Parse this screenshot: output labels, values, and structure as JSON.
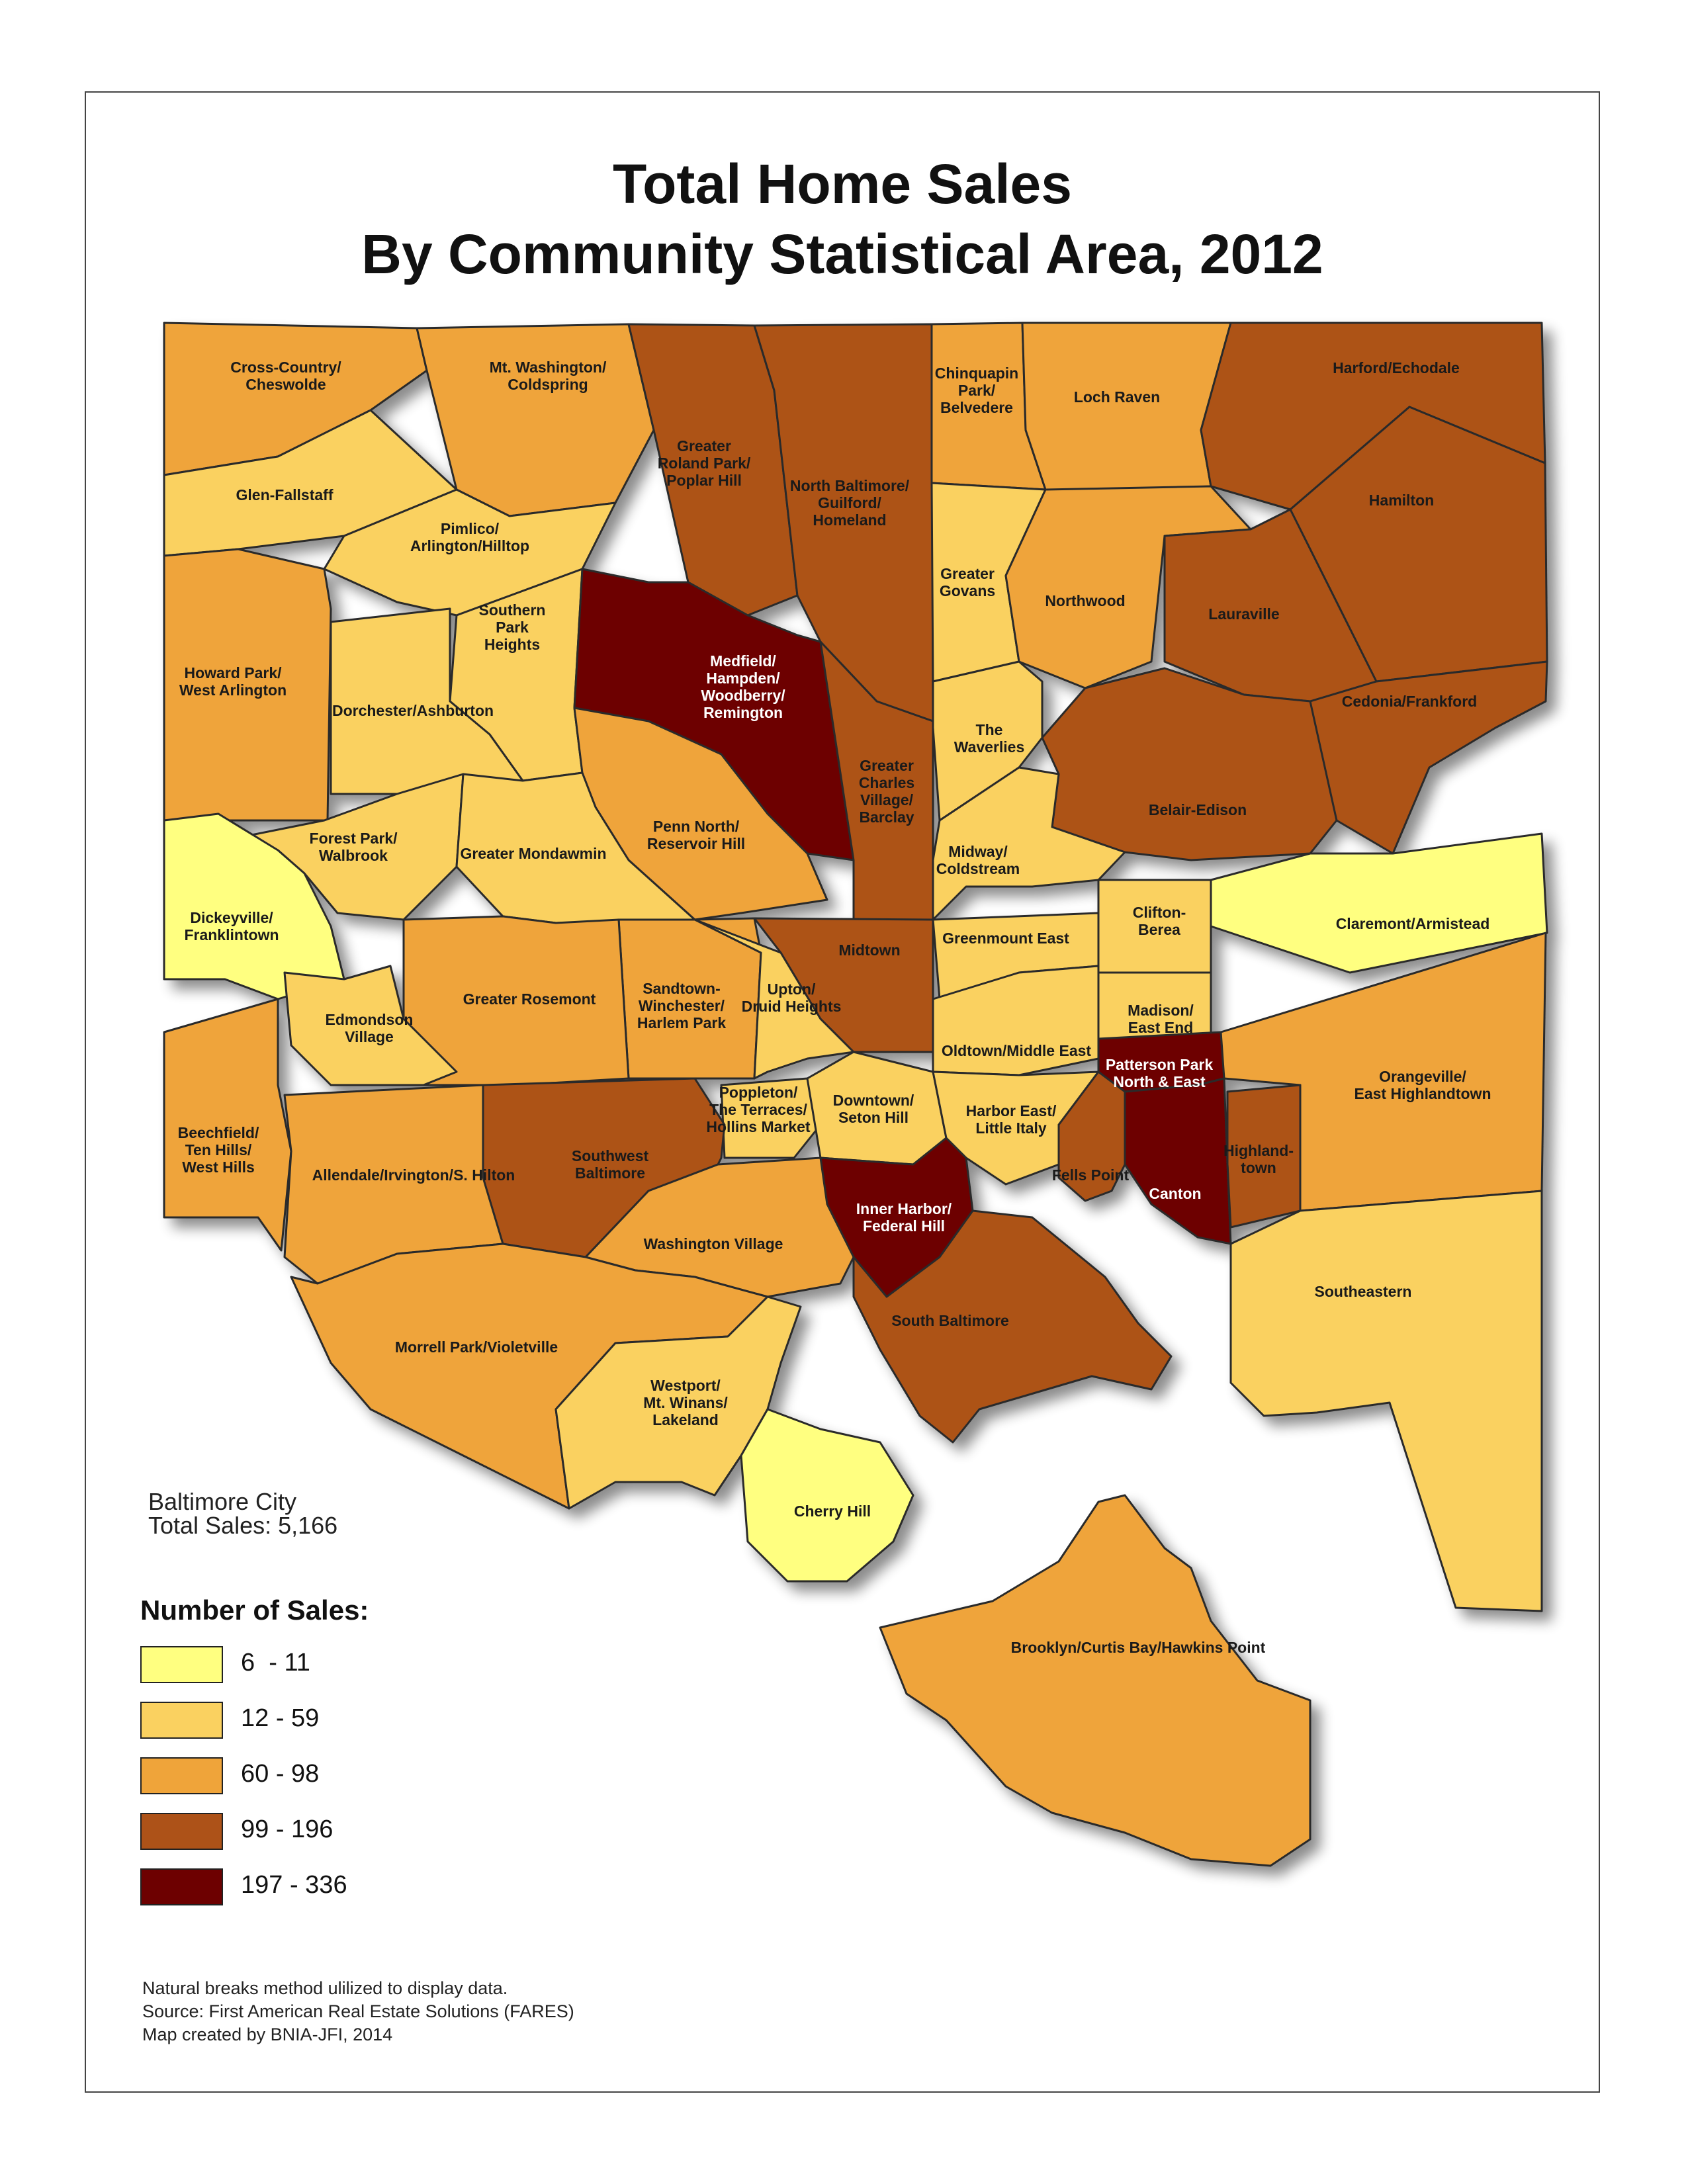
{
  "title": [
    "Total Home Sales",
    "By Community Statistical Area, 2012"
  ],
  "summary": {
    "line1": "Baltimore City",
    "line2": "Total Sales: 5,166"
  },
  "legend": {
    "title": "Number of Sales:",
    "classes": [
      {
        "range": "6  - 11",
        "color": "#FFFF80"
      },
      {
        "range": "12 - 59",
        "color": "#FAD160"
      },
      {
        "range": "60 - 98",
        "color": "#EFA43A"
      },
      {
        "range": "99 - 196",
        "color": "#AD5218"
      },
      {
        "range": "197 - 336",
        "color": "#6D0000"
      }
    ]
  },
  "notes": [
    "Natural breaks method ulilized to display data.",
    "Source: First American Real Estate Solutions (FARES)",
    "Map created by BNIA-JFI, 2014"
  ],
  "areas": [
    {
      "lines": [
        "Cross-Country/",
        "Cheswolde"
      ],
      "class": 2
    },
    {
      "lines": [
        "Mt. Washington/",
        "Coldspring"
      ],
      "class": 2
    },
    {
      "lines": [
        "Greater",
        "Roland Park/",
        "Poplar Hill"
      ],
      "class": 3
    },
    {
      "lines": [
        "North Baltimore/",
        "Guilford/",
        "Homeland"
      ],
      "class": 3
    },
    {
      "lines": [
        "Chinquapin",
        "Park/",
        "Belvedere"
      ],
      "class": 2
    },
    {
      "lines": [
        "Loch Raven"
      ],
      "class": 2
    },
    {
      "lines": [
        "Harford/Echodale"
      ],
      "class": 3
    },
    {
      "lines": [
        "Glen-Fallstaff"
      ],
      "class": 1
    },
    {
      "lines": [
        "Pimlico/",
        "Arlington/Hilltop"
      ],
      "class": 1
    },
    {
      "lines": [
        "Hamilton"
      ],
      "class": 3
    },
    {
      "lines": [
        "Greater",
        "Govans"
      ],
      "class": 1
    },
    {
      "lines": [
        "Northwood"
      ],
      "class": 2
    },
    {
      "lines": [
        "Lauraville"
      ],
      "class": 3
    },
    {
      "lines": [
        "Howard Park/",
        "West Arlington"
      ],
      "class": 2
    },
    {
      "lines": [
        "Southern",
        "Park",
        "Heights"
      ],
      "class": 1
    },
    {
      "lines": [
        "Medfield/",
        "Hampden/",
        "Woodberry/",
        "Remington"
      ],
      "class": 4
    },
    {
      "lines": [
        "Dorchester/Ashburton"
      ],
      "class": 1
    },
    {
      "lines": [
        "The",
        "Waverlies"
      ],
      "class": 1
    },
    {
      "lines": [
        "Cedonia/Frankford"
      ],
      "class": 3
    },
    {
      "lines": [
        "Greater",
        "Charles",
        "Village/",
        "Barclay"
      ],
      "class": 3
    },
    {
      "lines": [
        "Belair-Edison"
      ],
      "class": 3
    },
    {
      "lines": [
        "Forest Park/",
        "Walbrook"
      ],
      "class": 1
    },
    {
      "lines": [
        "Penn North/",
        "Reservoir Hill"
      ],
      "class": 2
    },
    {
      "lines": [
        "Greater Mondawmin"
      ],
      "class": 1
    },
    {
      "lines": [
        "Midway/",
        "Coldstream"
      ],
      "class": 1
    },
    {
      "lines": [
        "Dickeyville/",
        "Franklintown"
      ],
      "class": 0
    },
    {
      "lines": [
        "Clifton-",
        "Berea"
      ],
      "class": 1
    },
    {
      "lines": [
        "Claremont/Armistead"
      ],
      "class": 0
    },
    {
      "lines": [
        "Midtown"
      ],
      "class": 3
    },
    {
      "lines": [
        "Greenmount East"
      ],
      "class": 1
    },
    {
      "lines": [
        "Sandtown-",
        "Winchester/",
        "Harlem Park"
      ],
      "class": 2
    },
    {
      "lines": [
        "Greater Rosemont"
      ],
      "class": 2
    },
    {
      "lines": [
        "Upton/",
        "Druid Heights"
      ],
      "class": 1
    },
    {
      "lines": [
        "Edmondson",
        "Village"
      ],
      "class": 1
    },
    {
      "lines": [
        "Madison/",
        "East End"
      ],
      "class": 1
    },
    {
      "lines": [
        "Oldtown/Middle East"
      ],
      "class": 1
    },
    {
      "lines": [
        "Patterson Park",
        "North & East"
      ],
      "class": 4
    },
    {
      "lines": [
        "Orangeville/",
        "East Highlandtown"
      ],
      "class": 2
    },
    {
      "lines": [
        "Poppleton/",
        "The Terraces/",
        "Hollins Market"
      ],
      "class": 1
    },
    {
      "lines": [
        "Downtown/",
        "Seton Hill"
      ],
      "class": 1
    },
    {
      "lines": [
        "Harbor East/",
        "Little Italy"
      ],
      "class": 1
    },
    {
      "lines": [
        "Beechfield/",
        "Ten Hills/",
        "West Hills"
      ],
      "class": 2
    },
    {
      "lines": [
        "Southwest",
        "Baltimore"
      ],
      "class": 3
    },
    {
      "lines": [
        "Allendale/Irvington/S. Hilton"
      ],
      "class": 2
    },
    {
      "lines": [
        "Highland-",
        "town"
      ],
      "class": 3
    },
    {
      "lines": [
        "Fells Point"
      ],
      "class": 3
    },
    {
      "lines": [
        "Canton"
      ],
      "class": 4
    },
    {
      "lines": [
        "Inner Harbor/",
        "Federal Hill"
      ],
      "class": 4
    },
    {
      "lines": [
        "Washington Village"
      ],
      "class": 2
    },
    {
      "lines": [
        "Southeastern"
      ],
      "class": 1
    },
    {
      "lines": [
        "South Baltimore"
      ],
      "class": 3
    },
    {
      "lines": [
        "Morrell Park/Violetville"
      ],
      "class": 2
    },
    {
      "lines": [
        "Westport/",
        "Mt. Winans/",
        "Lakeland"
      ],
      "class": 1
    },
    {
      "lines": [
        "Cherry Hill"
      ],
      "class": 0
    },
    {
      "lines": [
        "Brooklyn/Curtis Bay/Hawkins Point"
      ],
      "class": 2
    }
  ]
}
